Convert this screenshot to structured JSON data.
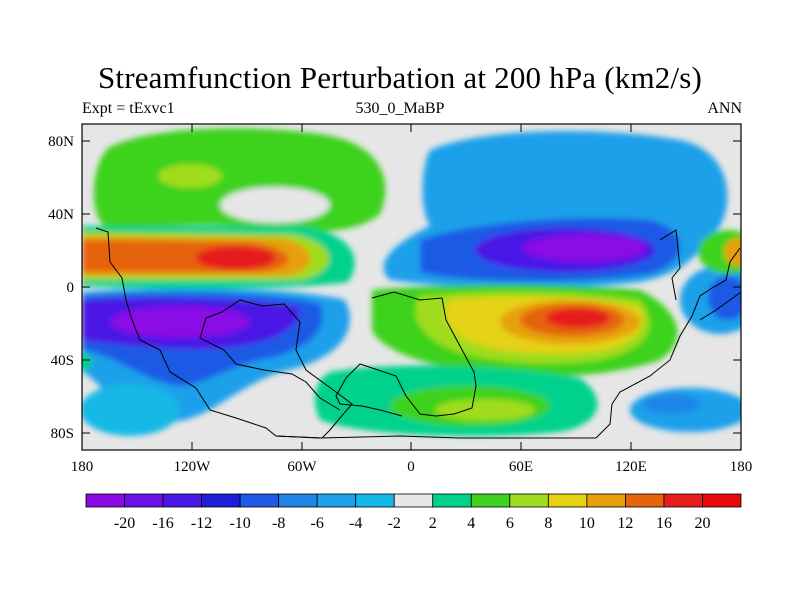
{
  "title": "Streamfunction Perturbation at 200 hPa (km2/s)",
  "left_label": "Expt = tExvc1",
  "center_label": "530_0_MaBP",
  "right_label": "ANN",
  "y_ticks": [
    "80N",
    "40N",
    "0",
    "40S",
    "80S"
  ],
  "x_ticks": [
    "180",
    "120W",
    "60W",
    "0",
    "60E",
    "120E",
    "180"
  ],
  "colorbar": {
    "labels": [
      "-20",
      "-16",
      "-12",
      "-10",
      "-8",
      "-6",
      "-4",
      "-2",
      "2",
      "4",
      "6",
      "8",
      "10",
      "12",
      "16",
      "20"
    ],
    "colors": [
      "#8a0ae6",
      "#6d10e8",
      "#4a18e6",
      "#1e1ed8",
      "#1e5ae6",
      "#1e86e6",
      "#1ea0ea",
      "#14b8e6",
      "#e6e6e6",
      "#00d28c",
      "#3cd21e",
      "#a0dc1e",
      "#e6d214",
      "#e6a00a",
      "#e6640a",
      "#e61e1e",
      "#e60a0a"
    ]
  }
}
